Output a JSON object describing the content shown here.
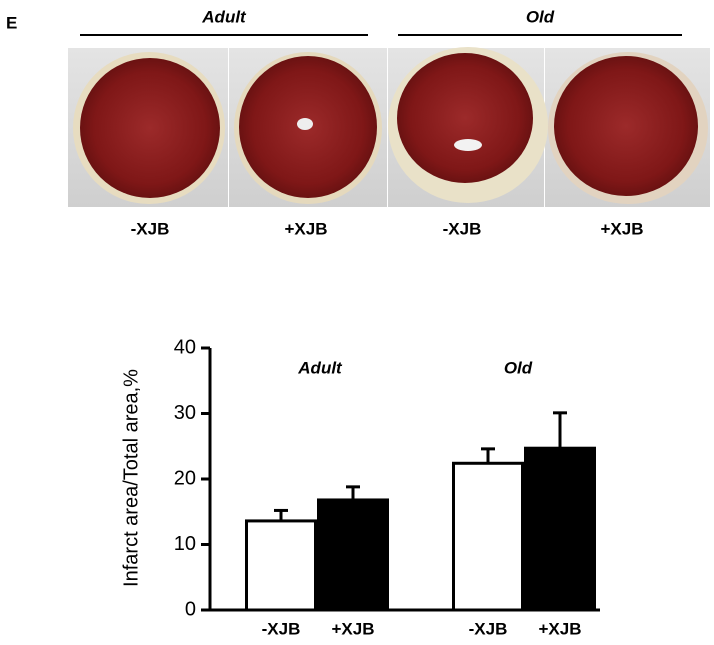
{
  "panel_label": "E",
  "photos": {
    "groups": [
      "Adult",
      "Old"
    ],
    "labels": [
      "-XJB",
      "+XJB",
      "-XJB",
      "+XJB"
    ]
  },
  "chart_data": {
    "type": "bar",
    "y_label": "Infarct area/Total area,%",
    "annotations": [
      "Adult",
      "Old"
    ],
    "categories": [
      "-XJB",
      "+XJB",
      "-XJB",
      "+XJB"
    ],
    "values": [
      13.6,
      16.8,
      22.4,
      24.7
    ],
    "errors": [
      1.6,
      2.0,
      2.2,
      5.4
    ],
    "colors": [
      "#ffffff",
      "#000000",
      "#ffffff",
      "#000000"
    ],
    "ylim": [
      0,
      40
    ],
    "yticks": [
      0,
      10,
      20,
      30,
      40
    ]
  }
}
